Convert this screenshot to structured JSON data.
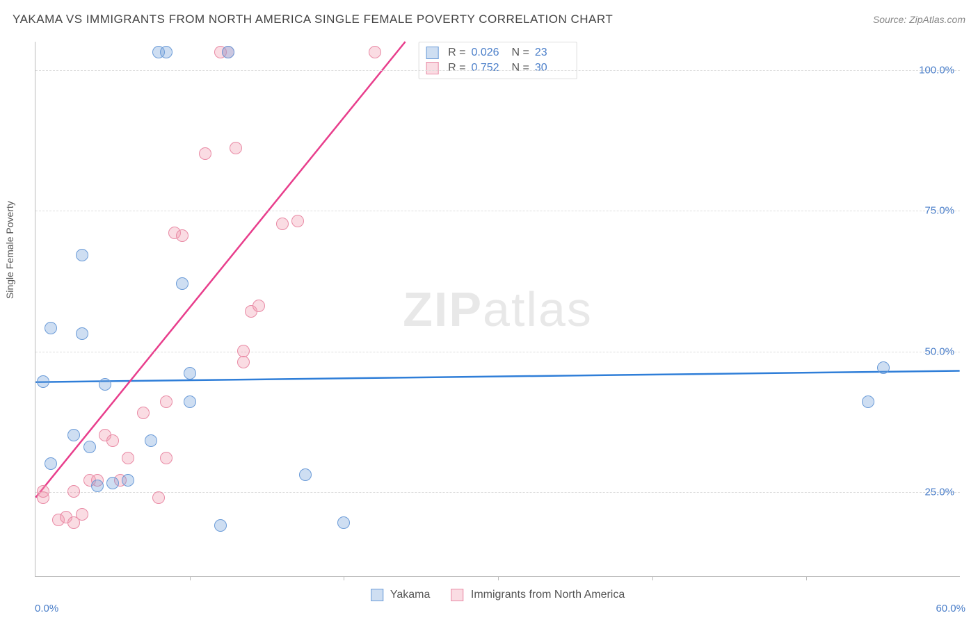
{
  "title": "YAKAMA VS IMMIGRANTS FROM NORTH AMERICA SINGLE FEMALE POVERTY CORRELATION CHART",
  "source_label": "Source: ZipAtlas.com",
  "ylabel": "Single Female Poverty",
  "watermark_zip": "ZIP",
  "watermark_atlas": "atlas",
  "chart": {
    "type": "scatter",
    "xlim": [
      0,
      60
    ],
    "ylim": [
      10,
      105
    ],
    "x_ticks_major": [
      0,
      60
    ],
    "x_ticks_minor": [
      10,
      20,
      30,
      40,
      50
    ],
    "y_gridlines": [
      25,
      50,
      75,
      100
    ],
    "y_tick_labels": [
      "25.0%",
      "50.0%",
      "75.0%",
      "100.0%"
    ],
    "x_tick_labels": [
      "0.0%",
      "60.0%"
    ],
    "background_color": "#ffffff",
    "grid_color": "#dddddd",
    "axis_color": "#bbbbbb",
    "tick_label_color": "#4a7ec9"
  },
  "series": [
    {
      "name": "Yakama",
      "marker_fill": "rgba(116,160,217,0.35)",
      "marker_stroke": "#6a9bd8",
      "marker_radius": 9,
      "trend_color": "#2f7ed8",
      "trend_width": 2.5,
      "R": "0.026",
      "N": "23",
      "trend": {
        "x1": 0,
        "y1": 44.5,
        "x2": 60,
        "y2": 46.5
      },
      "points": [
        [
          0.5,
          44.5
        ],
        [
          1,
          30
        ],
        [
          1,
          54
        ],
        [
          2.5,
          35
        ],
        [
          3,
          53
        ],
        [
          3,
          67
        ],
        [
          3.5,
          33
        ],
        [
          4,
          26
        ],
        [
          4.5,
          44
        ],
        [
          5,
          26.5
        ],
        [
          6,
          27
        ],
        [
          7.5,
          34
        ],
        [
          8,
          103
        ],
        [
          8.5,
          103
        ],
        [
          9.5,
          62
        ],
        [
          10,
          41
        ],
        [
          10,
          46
        ],
        [
          12,
          19
        ],
        [
          12.5,
          103
        ],
        [
          17.5,
          28
        ],
        [
          20,
          19.5
        ],
        [
          54,
          41
        ],
        [
          55,
          47
        ]
      ]
    },
    {
      "name": "Immigrants from North America",
      "marker_fill": "rgba(241,154,175,0.35)",
      "marker_stroke": "#e98aa5",
      "marker_radius": 9,
      "trend_color": "#e83e8c",
      "trend_width": 2.5,
      "R": "0.752",
      "N": "30",
      "trend": {
        "x1": 0,
        "y1": 24,
        "x2": 24,
        "y2": 105
      },
      "points": [
        [
          0.5,
          24
        ],
        [
          0.5,
          25
        ],
        [
          1.5,
          20
        ],
        [
          2,
          20.5
        ],
        [
          2.5,
          19.5
        ],
        [
          2.5,
          25
        ],
        [
          3,
          21
        ],
        [
          3.5,
          27
        ],
        [
          4,
          27
        ],
        [
          4.5,
          35
        ],
        [
          5,
          34
        ],
        [
          5.5,
          27
        ],
        [
          6,
          31
        ],
        [
          7,
          39
        ],
        [
          8,
          24
        ],
        [
          8.5,
          31
        ],
        [
          8.5,
          41
        ],
        [
          9,
          71
        ],
        [
          9.5,
          70.5
        ],
        [
          11,
          85
        ],
        [
          12,
          103
        ],
        [
          12.5,
          103
        ],
        [
          13,
          86
        ],
        [
          13.5,
          48
        ],
        [
          13.5,
          50
        ],
        [
          14,
          57
        ],
        [
          14.5,
          58
        ],
        [
          16,
          72.5
        ],
        [
          17,
          73
        ],
        [
          22,
          103
        ]
      ]
    }
  ],
  "legend": {
    "items": [
      {
        "label": "Yakama",
        "fill": "rgba(116,160,217,0.35)",
        "stroke": "#6a9bd8"
      },
      {
        "label": "Immigrants from North America",
        "fill": "rgba(241,154,175,0.35)",
        "stroke": "#e98aa5"
      }
    ]
  },
  "stats_labels": {
    "r_prefix": "R  =",
    "n_prefix": "N  ="
  }
}
